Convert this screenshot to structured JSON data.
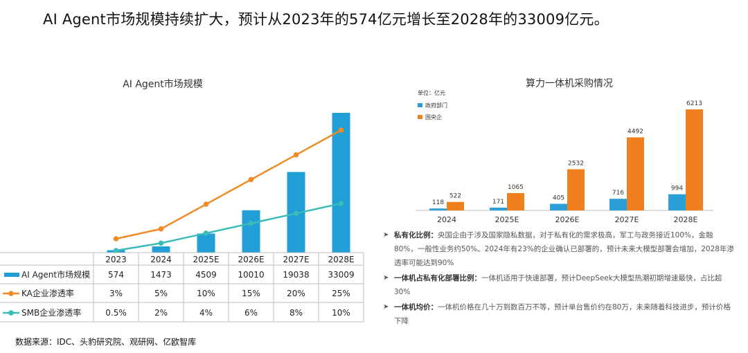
{
  "headline": "AI Agent市场规模持续扩大，预计从2023年的574亿元增长至2028年的33009亿元。",
  "source": "数据来源：IDC、头豹研究院、观研网、亿欧智库",
  "colors": {
    "bar_blue": "#1f9fd6",
    "line_orange": "#f08a24",
    "line_teal": "#3bbcb8",
    "bar_orange": "#f07f1e",
    "gov_blue": "#2c9fd8"
  },
  "chart_data": [
    {
      "type": "bar",
      "title": "AI Agent市场规模",
      "categories": [
        "2023",
        "2024",
        "2025E",
        "2026E",
        "2027E",
        "2028E"
      ],
      "series": [
        {
          "name": "AI Agent市场规模",
          "kind": "bar",
          "values": [
            574,
            1473,
            4509,
            10010,
            19038,
            33009
          ],
          "row": [
            "574",
            "1473",
            "4509",
            "10010",
            "19038",
            "33009"
          ]
        },
        {
          "name": "KA企业渗透率",
          "kind": "line",
          "values": [
            3,
            5,
            10,
            15,
            20,
            25
          ],
          "row": [
            "3%",
            "5%",
            "10%",
            "15%",
            "20%",
            "25%"
          ]
        },
        {
          "name": "SMB企业渗透率",
          "kind": "line",
          "values": [
            0.5,
            2,
            4,
            6,
            8,
            10
          ],
          "row": [
            "0.5%",
            "2%",
            "4%",
            "6%",
            "8%",
            "10%"
          ]
        }
      ]
    },
    {
      "type": "bar",
      "title": "算力一体机采购情况",
      "unit_label": "单位：亿元",
      "categories": [
        "2024",
        "2025E",
        "2026E",
        "2027E",
        "2028E"
      ],
      "series": [
        {
          "name": "政府部门",
          "values": [
            118,
            171,
            405,
            716,
            994
          ]
        },
        {
          "name": "国央企",
          "values": [
            522,
            1065,
            2532,
            4492,
            6213
          ]
        }
      ]
    }
  ],
  "notes": [
    {
      "label": "私有化比例：",
      "text": "央国企由于涉及国家隐私数据，对于私有化的需求极高，军工与政务接近100%，金融80%，一般性业务约50%。2024年有23%的企业确认已部署的，预计未来大模型部署会增加，2028年渗透率可能达到90%"
    },
    {
      "label": "一体机占私有化部署比例：",
      "text": "一体机适用于快速部署，预计DeepSeek大模型热潮初期增速最快，占比超30%"
    },
    {
      "label": "一体机均价：",
      "text": "一体机价格在几十万到数百万不等，预计单台售价约在80万，未来随着科技进步，预计价格下降"
    }
  ]
}
